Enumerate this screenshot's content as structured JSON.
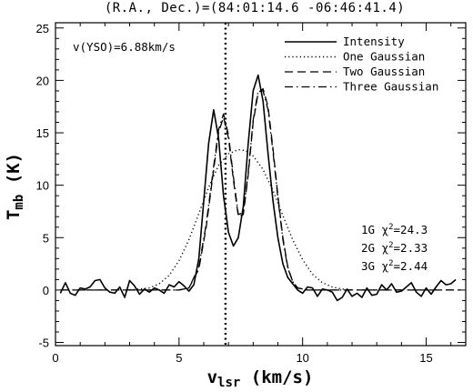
{
  "chart_data": {
    "type": "line",
    "title": "(R.A., Dec.)=(84:01:14.6 -06:46:41.4)",
    "xlabel": "v",
    "xlabel_sub": "lsr",
    "xlabel_unit": " (km/s)",
    "ylabel": "T",
    "ylabel_sub": "mb",
    "ylabel_unit": " (K)",
    "xlim": [
      0,
      16.6
    ],
    "ylim": [
      -5.3,
      25.5
    ],
    "xticks": [
      0,
      5,
      10,
      15
    ],
    "yticks": [
      -5,
      0,
      5,
      10,
      15,
      20,
      25
    ],
    "grid": false,
    "legend_position": "top-right",
    "vline_x": 6.88,
    "annotation_text": "v(YSO)=6.88km/s",
    "chi2_labels": [
      {
        "model": "1G",
        "chi": "χ",
        "sup": "2",
        "value": "=24.3"
      },
      {
        "model": "2G",
        "chi": "χ",
        "sup": "2",
        "value": "=2.33"
      },
      {
        "model": "3G",
        "chi": "χ",
        "sup": "2",
        "value": "=2.44"
      }
    ],
    "series": [
      {
        "name": "Intensity",
        "dash": "solid",
        "x": [
          0.2,
          0.4,
          0.6,
          0.8,
          1.0,
          1.2,
          1.4,
          1.6,
          1.8,
          2.0,
          2.2,
          2.4,
          2.6,
          2.8,
          3.0,
          3.2,
          3.4,
          3.6,
          3.8,
          4.0,
          4.2,
          4.4,
          4.6,
          4.8,
          5.0,
          5.2,
          5.4,
          5.6,
          5.8,
          6.0,
          6.2,
          6.4,
          6.6,
          6.8,
          7.0,
          7.2,
          7.4,
          7.6,
          7.8,
          8.0,
          8.2,
          8.4,
          8.6,
          8.8,
          9.0,
          9.2,
          9.4,
          9.6,
          9.8,
          10.0,
          10.2,
          10.4,
          10.6,
          10.8,
          11.0,
          11.2,
          11.4,
          11.6,
          11.8,
          12.0,
          12.2,
          12.4,
          12.6,
          12.8,
          13.0,
          13.2,
          13.4,
          13.6,
          13.8,
          14.0,
          14.2,
          14.4,
          14.6,
          14.8,
          15.0,
          15.2,
          15.4,
          15.6,
          15.8,
          16.0,
          16.2
        ],
        "y": [
          -0.3,
          0.7,
          -0.3,
          -0.5,
          0.2,
          0.1,
          0.3,
          0.9,
          1.0,
          0.2,
          -0.2,
          -0.3,
          0.3,
          -0.7,
          0.9,
          0.4,
          -0.4,
          0.1,
          -0.2,
          0.2,
          0.0,
          -0.3,
          0.5,
          0.3,
          0.8,
          0.4,
          -0.1,
          0.5,
          3.0,
          8.5,
          14.0,
          17.2,
          14.5,
          9.0,
          5.5,
          4.2,
          5.0,
          8.0,
          14.0,
          19.0,
          20.5,
          18.0,
          13.0,
          8.5,
          5.0,
          2.5,
          1.2,
          0.6,
          0.0,
          -0.3,
          0.3,
          0.2,
          -0.6,
          0.1,
          0.0,
          -0.2,
          -1.0,
          -0.7,
          0.1,
          -0.6,
          -0.3,
          -0.7,
          0.2,
          -0.5,
          -0.4,
          0.5,
          0.0,
          0.6,
          -0.2,
          -0.1,
          0.3,
          0.7,
          -0.2,
          -0.6,
          0.2,
          -0.4,
          0.3,
          0.9,
          0.5,
          0.6,
          1.0
        ]
      },
      {
        "name": "One Gaussian",
        "dash": "dotted",
        "x": [
          3.0,
          3.4,
          3.8,
          4.2,
          4.6,
          5.0,
          5.4,
          5.8,
          6.2,
          6.6,
          7.0,
          7.4,
          7.7,
          8.0,
          8.4,
          8.8,
          9.2,
          9.6,
          10.0,
          10.4,
          10.8,
          11.2,
          11.6,
          12.0
        ],
        "y": [
          0.0,
          0.1,
          0.2,
          0.6,
          1.4,
          2.8,
          4.8,
          7.3,
          9.8,
          11.9,
          13.0,
          13.4,
          13.3,
          12.8,
          11.5,
          9.5,
          7.1,
          4.8,
          2.9,
          1.5,
          0.7,
          0.3,
          0.1,
          0.0
        ]
      },
      {
        "name": "Two Gaussian",
        "dash": "dashed",
        "x": [
          0.2,
          5.0,
          5.4,
          5.8,
          6.1,
          6.4,
          6.6,
          6.8,
          7.0,
          7.2,
          7.4,
          7.6,
          7.8,
          8.0,
          8.2,
          8.4,
          8.6,
          8.8,
          9.0,
          9.2,
          9.4,
          9.6,
          9.8,
          10.2,
          16.4
        ],
        "y": [
          0.0,
          0.0,
          0.2,
          2.0,
          6.0,
          11.5,
          15.0,
          16.5,
          14.5,
          10.5,
          7.0,
          7.2,
          11.0,
          16.0,
          18.8,
          19.2,
          17.5,
          13.5,
          9.0,
          5.0,
          2.2,
          0.8,
          0.2,
          0.0,
          0.0
        ]
      },
      {
        "name": "Three Gaussian",
        "dash": "dashdot",
        "x": [
          0.2,
          5.0,
          5.4,
          5.8,
          6.1,
          6.4,
          6.6,
          6.8,
          7.0,
          7.2,
          7.4,
          7.6,
          7.8,
          8.0,
          8.2,
          8.4,
          8.6,
          8.8,
          9.0,
          9.2,
          9.4,
          9.6,
          9.8,
          10.2,
          16.4
        ],
        "y": [
          0.0,
          0.0,
          0.2,
          2.2,
          6.3,
          11.8,
          15.3,
          16.8,
          14.8,
          10.8,
          7.2,
          7.4,
          11.2,
          16.2,
          19.0,
          19.0,
          17.2,
          13.2,
          8.8,
          4.8,
          2.1,
          0.8,
          0.2,
          0.0,
          0.0
        ]
      }
    ]
  }
}
